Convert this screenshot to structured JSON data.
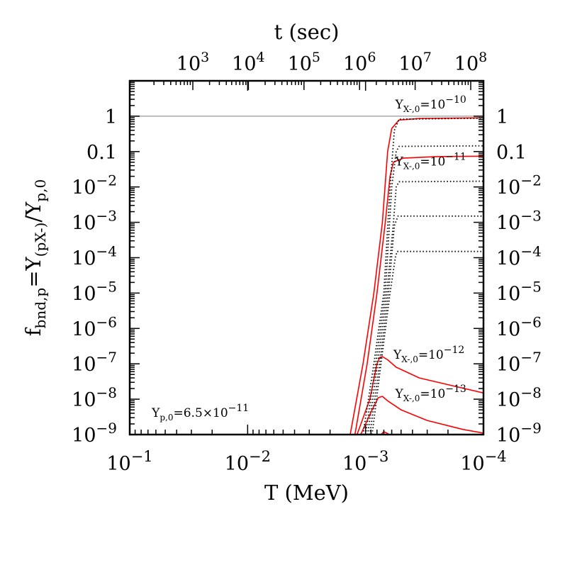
{
  "chart_data": {
    "type": "line",
    "xlabel": "T (MeV)",
    "x2label": "t (sec)",
    "ylabel": "f_bnd,p = Y_(pX-)/Y_p,0",
    "x_axis": {
      "scale": "log",
      "reversed": true,
      "lim": [
        0.1,
        0.0001
      ],
      "ticks": [
        {
          "value": 0.1,
          "base": "10",
          "exp": "−1"
        },
        {
          "value": 0.01,
          "base": "10",
          "exp": "−2"
        },
        {
          "value": 0.001,
          "base": "10",
          "exp": "−3"
        },
        {
          "value": 0.0001,
          "base": "10",
          "exp": "−4"
        }
      ]
    },
    "x2_axis": {
      "scale": "log",
      "ticks": [
        {
          "value": 1000,
          "base": "10",
          "exp": "3"
        },
        {
          "value": 10000,
          "base": "10",
          "exp": "4"
        },
        {
          "value": 100000,
          "base": "10",
          "exp": "5"
        },
        {
          "value": 1000000,
          "base": "10",
          "exp": "6"
        },
        {
          "value": 10000000,
          "base": "10",
          "exp": "7"
        },
        {
          "value": 100000000,
          "base": "10",
          "exp": "8"
        }
      ]
    },
    "y_axis": {
      "scale": "log",
      "lim": [
        1e-09,
        10
      ],
      "ticks": [
        {
          "value": 1,
          "text": "1"
        },
        {
          "value": 0.1,
          "text": "0.1"
        },
        {
          "value": 0.01,
          "base": "10",
          "exp": "−2"
        },
        {
          "value": 0.001,
          "base": "10",
          "exp": "−3"
        },
        {
          "value": 0.0001,
          "base": "10",
          "exp": "−4"
        },
        {
          "value": 1e-05,
          "base": "10",
          "exp": "−5"
        },
        {
          "value": 1e-06,
          "base": "10",
          "exp": "−6"
        },
        {
          "value": 1e-07,
          "base": "10",
          "exp": "−7"
        },
        {
          "value": 1e-08,
          "base": "10",
          "exp": "−8"
        },
        {
          "value": 1e-09,
          "base": "10",
          "exp": "−9"
        }
      ]
    },
    "reference_line": {
      "y": 1,
      "color": "#aaaaaa"
    },
    "annotations": [
      {
        "main": "Y",
        "sub": "X-,0",
        "rest": "=10",
        "exp": "−10",
        "x": 0.00056,
        "y": 1.65
      },
      {
        "main": "Y",
        "sub": "X-,0",
        "rest": "=10",
        "exp": "−11",
        "x": 0.00056,
        "y": 0.04
      },
      {
        "main": "Y",
        "sub": "X-,0",
        "rest": "=10",
        "exp": "−12",
        "x": 0.00058,
        "y": 1.4e-07
      },
      {
        "main": "Y",
        "sub": "X-,0",
        "rest": "=10",
        "exp": "−13",
        "x": 0.00056,
        "y": 1.1e-08
      },
      {
        "main": "Y",
        "sub": "p,0",
        "rest": "=6.5×10",
        "exp": "−11",
        "x": 0.065,
        "y": 3.2e-09
      }
    ],
    "series": [
      {
        "style": "solid",
        "color": "#ff0000",
        "points": [
          [
            0.00135,
            1e-09
          ],
          [
            0.00105,
            1e-07
          ],
          [
            0.00085,
            1e-05
          ],
          [
            0.00072,
            0.001
          ],
          [
            0.00065,
            0.1
          ],
          [
            0.0006,
            0.45
          ],
          [
            0.00052,
            0.78
          ],
          [
            0.00035,
            0.86
          ],
          [
            0.0001,
            0.9
          ]
        ]
      },
      {
        "style": "solid",
        "color": "#ff0000",
        "points": [
          [
            0.00123,
            1e-09
          ],
          [
            0.00097,
            1e-07
          ],
          [
            0.0008,
            1e-05
          ],
          [
            0.00068,
            0.001
          ],
          [
            0.00062,
            0.02
          ],
          [
            0.00058,
            0.05
          ],
          [
            0.00048,
            0.065
          ],
          [
            0.00025,
            0.072
          ],
          [
            0.0001,
            0.074
          ]
        ]
      },
      {
        "style": "solid",
        "color": "#ff0000",
        "points": [
          [
            0.00118,
            1e-09
          ],
          [
            0.00092,
            1e-08
          ],
          [
            0.0008,
            1e-07
          ],
          [
            0.00076,
            1.5e-07
          ],
          [
            0.00072,
            1.6e-07
          ],
          [
            0.00065,
            1.3e-07
          ],
          [
            0.00055,
            8e-08
          ],
          [
            0.00035,
            4e-08
          ],
          [
            0.0001,
            1.5e-08
          ]
        ]
      },
      {
        "style": "solid",
        "color": "#ff0000",
        "points": [
          [
            0.0011,
            1e-09
          ],
          [
            0.00088,
            5e-09
          ],
          [
            0.00078,
            1.1e-08
          ],
          [
            0.00072,
            1.2e-08
          ],
          [
            0.00065,
            9e-09
          ],
          [
            0.0005,
            5e-09
          ],
          [
            0.0003,
            2.5e-09
          ],
          [
            0.00015,
            1.4e-09
          ],
          [
            0.0001,
            1.1e-09
          ]
        ]
      },
      {
        "style": "solid",
        "color": "#ff0000",
        "points": [
          [
            0.00074,
            1e-09
          ],
          [
            0.0007,
            1.2e-09
          ],
          [
            0.00066,
            1.1e-09
          ],
          [
            0.00063,
            1e-09
          ]
        ]
      },
      {
        "style": "dotted",
        "color": "#000000",
        "points": [
          [
            0.00105,
            1e-09
          ],
          [
            0.00085,
            1e-07
          ],
          [
            0.0007,
            1e-05
          ],
          [
            0.00062,
            0.01
          ],
          [
            0.00057,
            0.4
          ],
          [
            0.00052,
            0.82
          ],
          [
            0.0001,
            0.88
          ]
        ]
      },
      {
        "style": "dotted",
        "color": "#000000",
        "points": [
          [
            0.001,
            1e-09
          ],
          [
            0.00082,
            1e-07
          ],
          [
            0.00068,
            1e-05
          ],
          [
            0.0006,
            0.01
          ],
          [
            0.00055,
            0.1
          ],
          [
            0.00052,
            0.14
          ],
          [
            0.0001,
            0.145
          ]
        ]
      },
      {
        "style": "dotted",
        "color": "#000000",
        "points": [
          [
            0.00096,
            1e-09
          ],
          [
            0.00079,
            1e-07
          ],
          [
            0.00066,
            1e-05
          ],
          [
            0.00058,
            0.001
          ],
          [
            0.00055,
            0.01
          ],
          [
            0.00052,
            0.014
          ],
          [
            0.0001,
            0.0145
          ]
        ]
      },
      {
        "style": "dotted",
        "color": "#000000",
        "points": [
          [
            0.00092,
            1e-09
          ],
          [
            0.00076,
            1e-07
          ],
          [
            0.00064,
            1e-05
          ],
          [
            0.00057,
            0.0008
          ],
          [
            0.00053,
            0.0015
          ],
          [
            0.0001,
            0.0015
          ]
        ]
      },
      {
        "style": "dotted",
        "color": "#000000",
        "points": [
          [
            0.00088,
            1e-09
          ],
          [
            0.00074,
            1e-07
          ],
          [
            0.00062,
            1e-05
          ],
          [
            0.00056,
            0.0001
          ],
          [
            0.00054,
            0.00015
          ],
          [
            0.0001,
            0.00015
          ]
        ]
      }
    ]
  }
}
